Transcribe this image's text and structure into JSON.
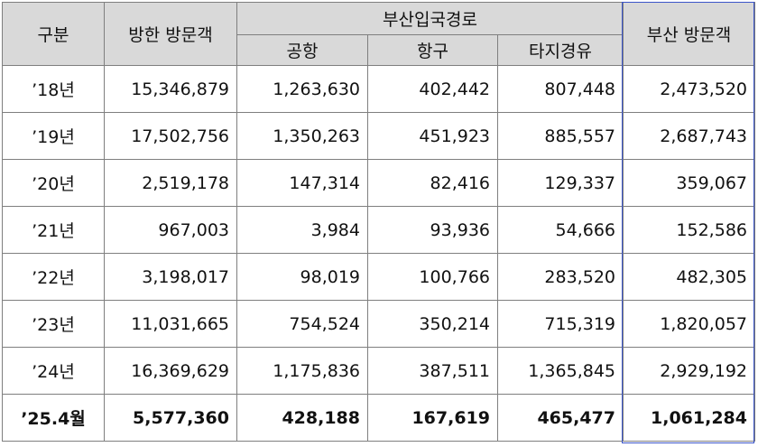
{
  "header": {
    "category": "구분",
    "korea_visitors": "방한 방문객",
    "entry_route": "부산입국경로",
    "routes": [
      "공항",
      "항구",
      "타지경유"
    ],
    "busan_visitors": "부산 방문객"
  },
  "rows": [
    [
      "’18년",
      "15,346,879",
      "1,263,630",
      "402,442",
      "807,448",
      "2,473,520"
    ],
    [
      "’19년",
      "17,502,756",
      "1,350,263",
      "451,923",
      "885,557",
      "2,687,743"
    ],
    [
      "’20년",
      "2,519,178",
      "147,314",
      "82,416",
      "129,337",
      "359,067"
    ],
    [
      "’21년",
      "967,003",
      "3,984",
      "93,936",
      "54,666",
      "152,586"
    ],
    [
      "’22년",
      "3,198,017",
      "98,019",
      "100,766",
      "283,520",
      "482,305"
    ],
    [
      "’23년",
      "11,031,665",
      "754,524",
      "350,214",
      "715,319",
      "1,820,057"
    ],
    [
      "’24년",
      "16,369,629",
      "1,175,836",
      "387,511",
      "1,365,845",
      "2,929,192"
    ],
    [
      "’25.4월",
      "5,577,360",
      "428,188",
      "167,619",
      "465,477",
      "1,061,284"
    ]
  ]
}
